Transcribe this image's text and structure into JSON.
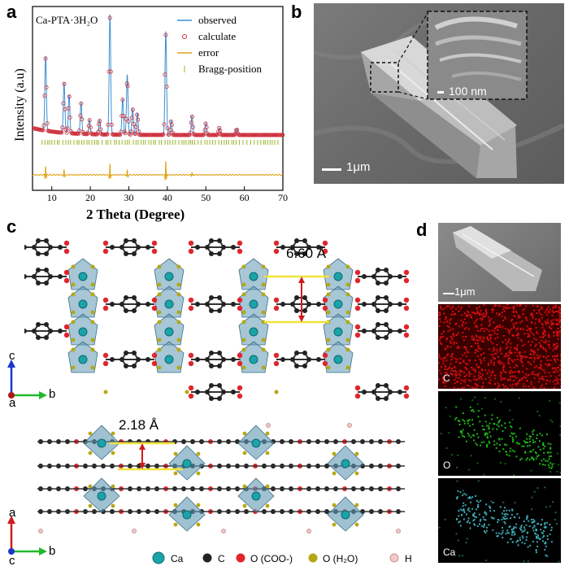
{
  "panels": {
    "a": "a",
    "b": "b",
    "c": "c",
    "d": "d"
  },
  "chart_data": {
    "type": "line",
    "title": "",
    "sample_label": "Ca-PTA·3H₂O",
    "xlabel": "2 Theta (Degree)",
    "ylabel": "Intensity (a.u)",
    "xlim": [
      5,
      70
    ],
    "xticks": [
      10,
      20,
      30,
      40,
      50,
      60,
      70
    ],
    "grid": false,
    "legend": {
      "placement": "top-right",
      "entries": [
        {
          "label": "observed",
          "color": "#3b8fd1",
          "style": "line"
        },
        {
          "label": "calculate",
          "color": "#d2303a",
          "style": "open-circle"
        },
        {
          "label": "error",
          "color": "#e0a41d",
          "style": "line"
        },
        {
          "label": "Bragg-position",
          "color": "#9ab52a",
          "style": "tick"
        }
      ]
    },
    "peaks": [
      {
        "x": 8.4,
        "height": 0.62
      },
      {
        "x": 13.2,
        "height": 0.42
      },
      {
        "x": 14.5,
        "height": 0.32
      },
      {
        "x": 17.6,
        "height": 0.26
      },
      {
        "x": 19.8,
        "height": 0.12
      },
      {
        "x": 22.4,
        "height": 0.12
      },
      {
        "x": 25.1,
        "height": 1.0
      },
      {
        "x": 28.4,
        "height": 0.3
      },
      {
        "x": 29.6,
        "height": 0.5
      },
      {
        "x": 31.0,
        "height": 0.22
      },
      {
        "x": 32.2,
        "height": 0.18
      },
      {
        "x": 39.6,
        "height": 0.86
      },
      {
        "x": 41.0,
        "height": 0.12
      },
      {
        "x": 46.4,
        "height": 0.16
      },
      {
        "x": 50.0,
        "height": 0.1
      },
      {
        "x": 53.5,
        "height": 0.06
      },
      {
        "x": 58.0,
        "height": 0.05
      }
    ],
    "error_spikes": [
      {
        "x": 8.4,
        "amp": 0.09
      },
      {
        "x": 13.2,
        "amp": 0.05
      },
      {
        "x": 25.1,
        "amp": 0.11
      },
      {
        "x": 29.6,
        "amp": 0.05
      },
      {
        "x": 39.6,
        "amp": 0.14
      },
      {
        "x": 46.4,
        "amp": 0.03
      }
    ]
  },
  "sem_b": {
    "scale_main": "1μm",
    "scale_inset": "100 nm"
  },
  "structure": {
    "distance_top": "6.60 Å",
    "distance_bottom": "2.18 Å",
    "axes_top": {
      "up": "c",
      "origin": "a",
      "right": "b"
    },
    "axes_bottom": {
      "up": "a",
      "origin": "c",
      "right": "b"
    },
    "legend": [
      {
        "label": "Ca",
        "color": "#1aa3a8"
      },
      {
        "label": "C",
        "color": "#222222"
      },
      {
        "label": "O (COO-)",
        "color": "#e0252c"
      },
      {
        "label": "O (H₂O)",
        "color": "#b5a814"
      },
      {
        "label": "H",
        "color": "#f3c8c8"
      }
    ]
  },
  "eds_d": {
    "scale": "1μm",
    "maps": [
      {
        "label": "C",
        "color": "#e01010"
      },
      {
        "label": "O",
        "color": "#22c41a"
      },
      {
        "label": "Ca",
        "color": "#3fb6c0"
      }
    ]
  }
}
